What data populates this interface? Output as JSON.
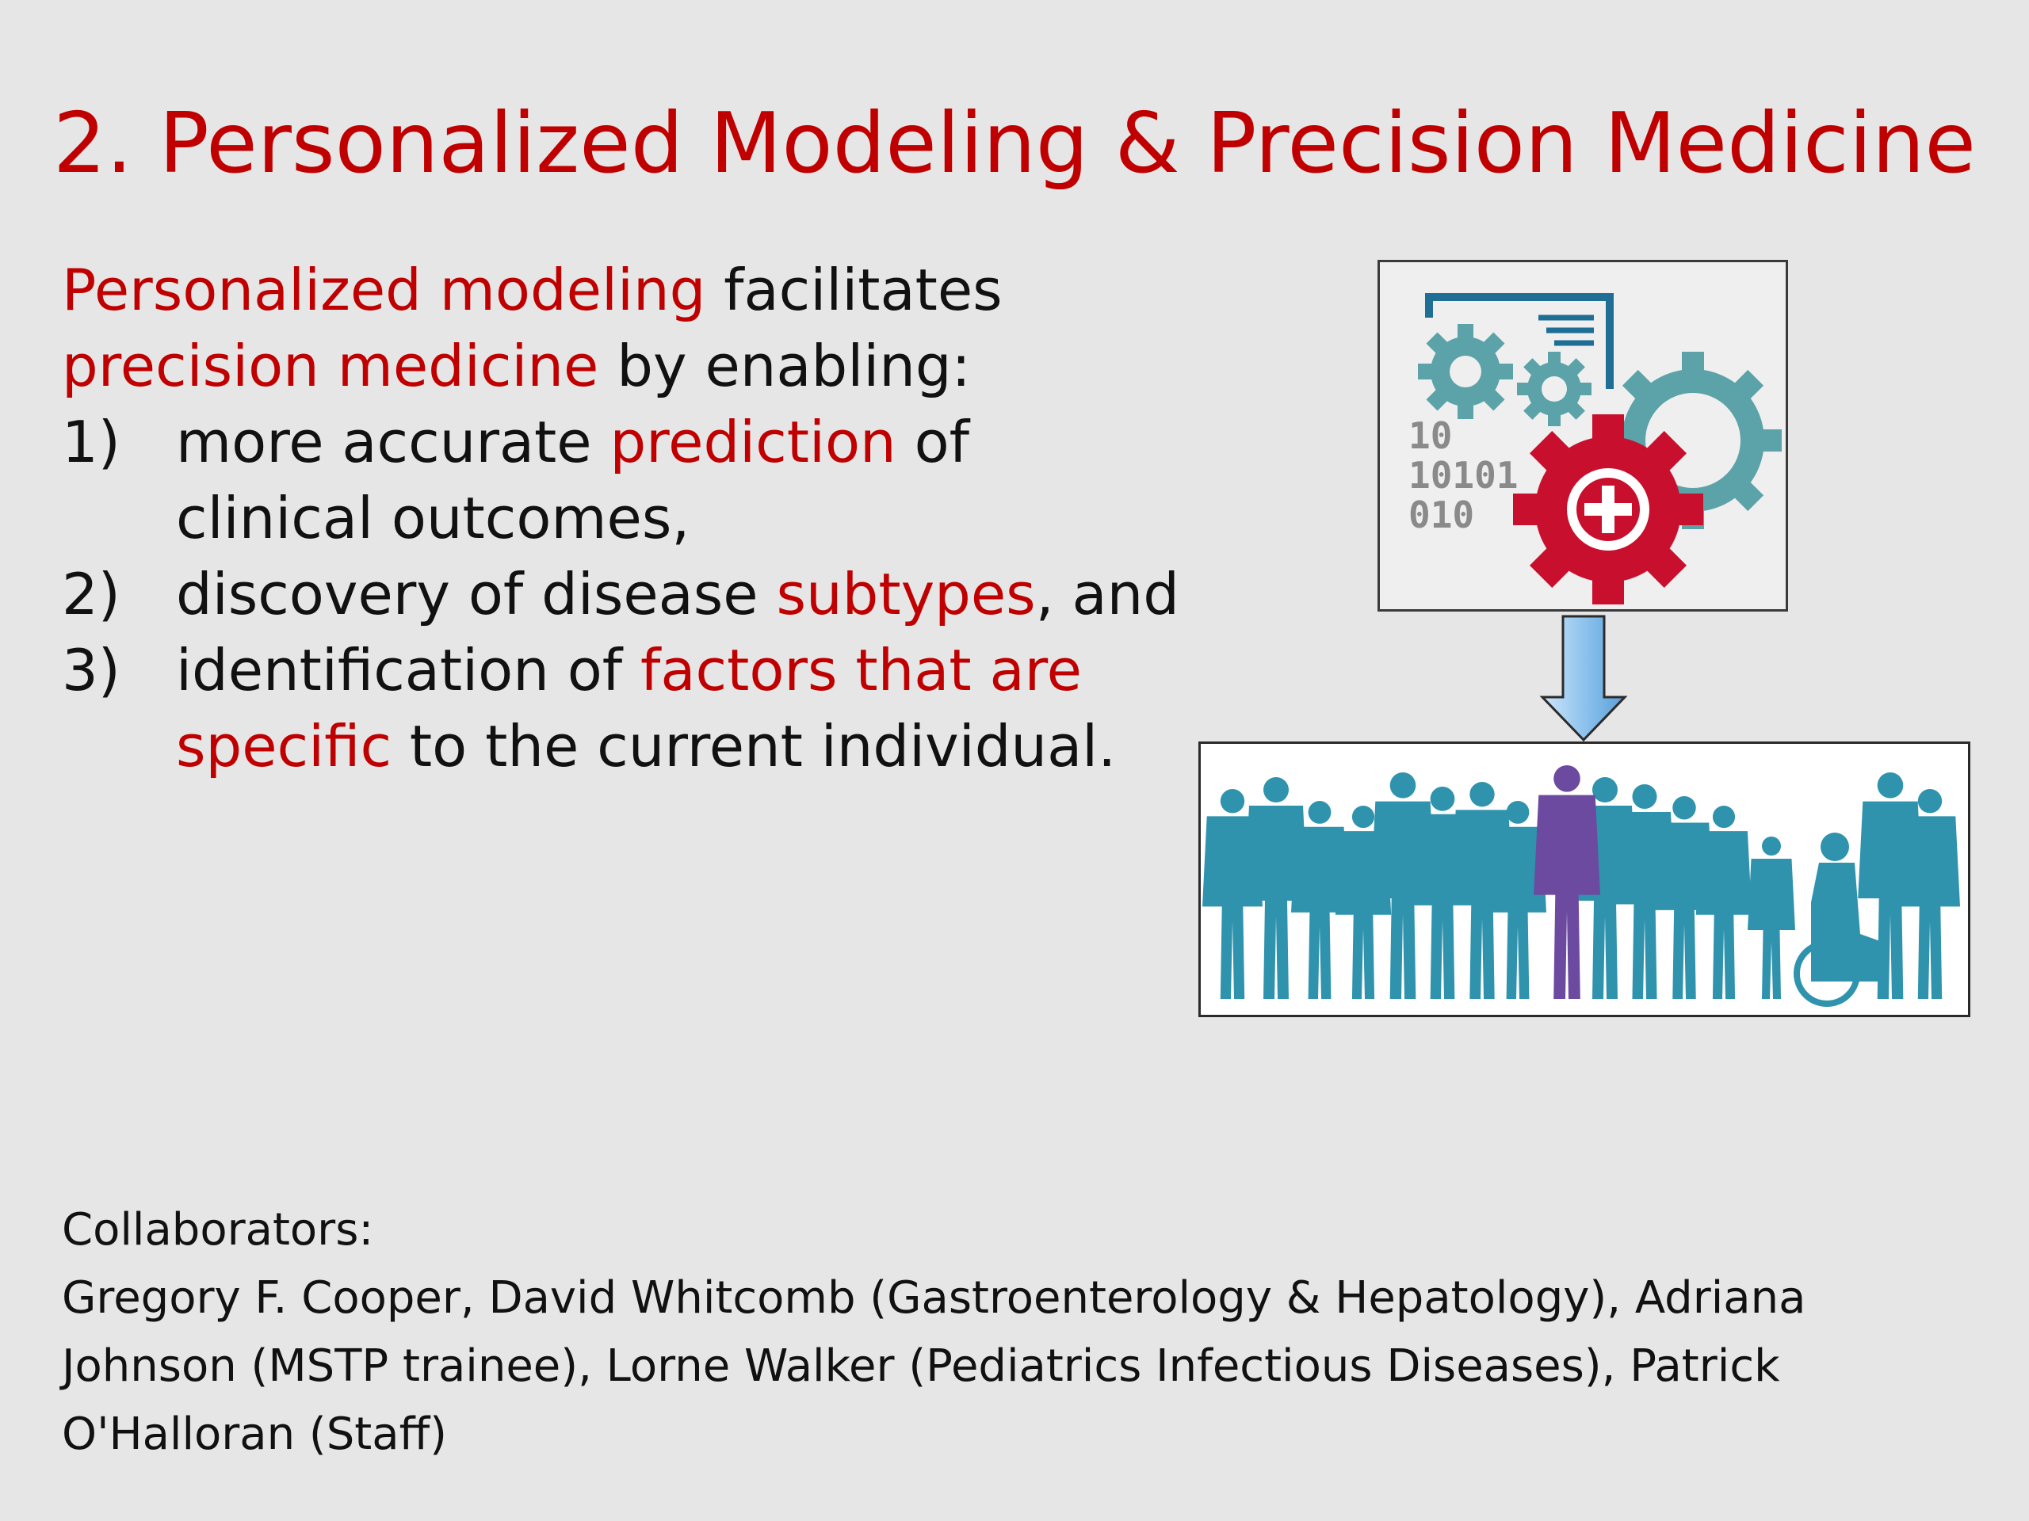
{
  "slide": {
    "title": "2. Personalized Modeling & Precision Medicine",
    "intro": {
      "line1_hl": "Personalized modeling",
      "line1_rest": " facilitates",
      "line2_hl": "precision medicine",
      "line2_rest": " by enabling:"
    },
    "list": [
      {
        "num": "1)",
        "a": "more accurate ",
        "hl": "prediction",
        "b": " of",
        "line2": "clinical outcomes,"
      },
      {
        "num": "2)",
        "a": "discovery of disease ",
        "hl": "subtypes",
        "b": ", and"
      },
      {
        "num": "3)",
        "a": "identification of ",
        "hl": "factors that are",
        "line2_hl": "specific",
        "line2_rest": " to the current individual."
      }
    ],
    "collaborators": {
      "label": "Collaborators:",
      "lines": [
        "Gregory F. Cooper, David Whitcomb (Gastroenterology & Hepatology), Adriana",
        "Johnson (MSTP trainee), Lorne Walker (Pediatrics Infectious Diseases), Patrick",
        "O'Halloran (Staff)"
      ]
    },
    "graphic": {
      "binary_lines": [
        "10",
        "10101",
        "010"
      ],
      "icons": [
        "gears-medical-icon",
        "down-arrow-icon",
        "crowd-people-icon"
      ]
    }
  },
  "colors": {
    "accent": "#c00000",
    "text": "#111111",
    "background": "#e6e6e6",
    "gear_teal": "#5ba3a8",
    "gear_red": "#c8102e",
    "people_teal": "#2f93ad",
    "person_highlight": "#6b4aa0",
    "arrow_blue": "#8ec3ee"
  }
}
